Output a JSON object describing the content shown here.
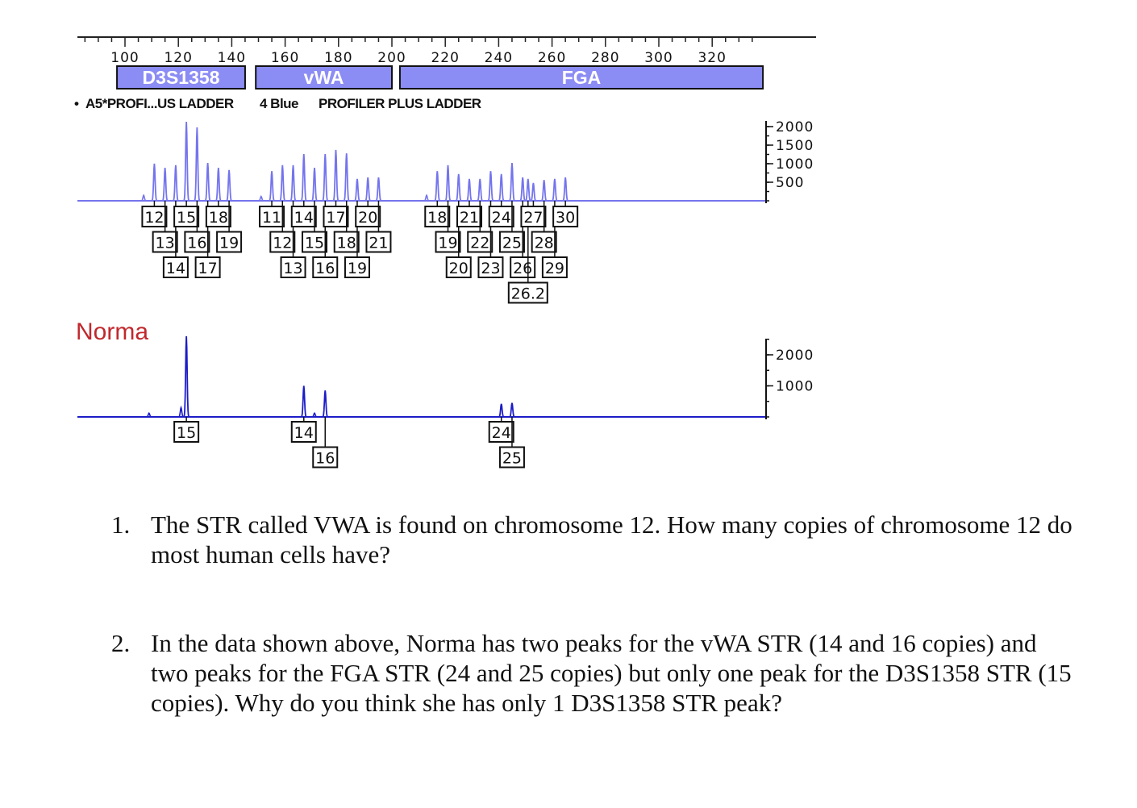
{
  "figure": {
    "size_axis": {
      "unit": "bp",
      "range": [
        83,
        335
      ],
      "tick_labels": [
        100,
        120,
        140,
        160,
        180,
        200,
        220,
        240,
        260,
        280,
        300,
        320
      ]
    },
    "loci": [
      {
        "name": "D3S1358",
        "range_bp": [
          97,
          145
        ]
      },
      {
        "name": "vWA",
        "range_bp": [
          149,
          200
        ]
      },
      {
        "name": "FGA",
        "range_bp": [
          203,
          339
        ]
      }
    ],
    "locus_color": "#8c8cf5",
    "legend": {
      "bullet": "•",
      "sample": "A5*PROFI...US LADDER",
      "dye": "4 Blue",
      "title": "PROFILER PLUS LADDER"
    },
    "ladder": {
      "trace_color": "#7474ee",
      "rfu_ticks": [
        "2000",
        "1500",
        "1000",
        "500"
      ],
      "minor_peaks_bp": [
        {
          "bp": 107,
          "rfu": 150
        },
        {
          "bp": 151,
          "rfu": 120
        },
        {
          "bp": 213,
          "rfu": 150
        }
      ],
      "loci": [
        {
          "name": "D3S1358",
          "peaks": [
            {
              "allele": "12",
              "bp": 111,
              "rfu": 1000
            },
            {
              "allele": "13",
              "bp": 115,
              "rfu": 890
            },
            {
              "allele": "14",
              "bp": 119,
              "rfu": 960
            },
            {
              "allele": "15",
              "bp": 123,
              "rfu": 2130
            },
            {
              "allele": "16",
              "bp": 127,
              "rfu": 1980
            },
            {
              "allele": "17",
              "bp": 131,
              "rfu": 1020
            },
            {
              "allele": "18",
              "bp": 135,
              "rfu": 890
            },
            {
              "allele": "19",
              "bp": 139,
              "rfu": 830
            }
          ]
        },
        {
          "name": "vWA",
          "peaks": [
            {
              "allele": "11",
              "bp": 155,
              "rfu": 800
            },
            {
              "allele": "12",
              "bp": 159,
              "rfu": 960
            },
            {
              "allele": "13",
              "bp": 163,
              "rfu": 960
            },
            {
              "allele": "14",
              "bp": 167,
              "rfu": 1260
            },
            {
              "allele": "15",
              "bp": 171,
              "rfu": 890
            },
            {
              "allele": "16",
              "bp": 175,
              "rfu": 1260
            },
            {
              "allele": "17",
              "bp": 179,
              "rfu": 1370
            },
            {
              "allele": "18",
              "bp": 183,
              "rfu": 1280
            },
            {
              "allele": "19",
              "bp": 187,
              "rfu": 590
            },
            {
              "allele": "20",
              "bp": 191,
              "rfu": 630
            },
            {
              "allele": "21",
              "bp": 195,
              "rfu": 630
            }
          ]
        },
        {
          "name": "FGA",
          "peaks": [
            {
              "allele": "18",
              "bp": 217,
              "rfu": 800
            },
            {
              "allele": "19",
              "bp": 221,
              "rfu": 960
            },
            {
              "allele": "20",
              "bp": 225,
              "rfu": 720
            },
            {
              "allele": "21",
              "bp": 229,
              "rfu": 590
            },
            {
              "allele": "22",
              "bp": 233,
              "rfu": 590
            },
            {
              "allele": "23",
              "bp": 237,
              "rfu": 800
            },
            {
              "allele": "24",
              "bp": 241,
              "rfu": 720
            },
            {
              "allele": "25",
              "bp": 245,
              "rfu": 1020
            },
            {
              "allele": "26",
              "bp": 249,
              "rfu": 630
            },
            {
              "allele": "26.2",
              "bp": 251,
              "rfu": 590
            },
            {
              "allele": "27",
              "bp": 253,
              "rfu": 480
            },
            {
              "allele": "28",
              "bp": 257,
              "rfu": 560
            },
            {
              "allele": "29",
              "bp": 261,
              "rfu": 590
            },
            {
              "allele": "30",
              "bp": 265,
              "rfu": 630
            }
          ]
        }
      ]
    },
    "sample": {
      "name": "Norma",
      "name_color": "#c0282d",
      "trace_color": "#1c1cc8",
      "rfu_ticks": [
        "2000",
        "1000"
      ],
      "minor_peaks_bp": [
        {
          "bp": 109,
          "rfu": 120
        },
        {
          "bp": 121,
          "rfu": 300
        },
        {
          "bp": 171,
          "rfu": 120
        }
      ],
      "loci": [
        {
          "name": "D3S1358",
          "peaks": [
            {
              "allele": "15",
              "bp": 123,
              "rfu": 2600
            }
          ]
        },
        {
          "name": "vWA",
          "peaks": [
            {
              "allele": "14",
              "bp": 167,
              "rfu": 1000
            },
            {
              "allele": "16",
              "bp": 175,
              "rfu": 850
            }
          ]
        },
        {
          "name": "FGA",
          "peaks": [
            {
              "allele": "24",
              "bp": 241,
              "rfu": 420
            },
            {
              "allele": "25",
              "bp": 245,
              "rfu": 450
            }
          ]
        }
      ]
    }
  },
  "questions": [
    {
      "number": "1.",
      "text": "The STR called VWA is found on chromosome 12. How many copies of chromosome 12 do most human cells have?"
    },
    {
      "number": "2.",
      "text": "In the data shown above, Norma has two peaks for the vWA STR (14 and 16 copies) and two peaks for the FGA STR (24 and 25 copies) but only one peak for the D3S1358 STR (15 copies). Why do you think she has only 1 D3S1358 STR peak?"
    }
  ]
}
